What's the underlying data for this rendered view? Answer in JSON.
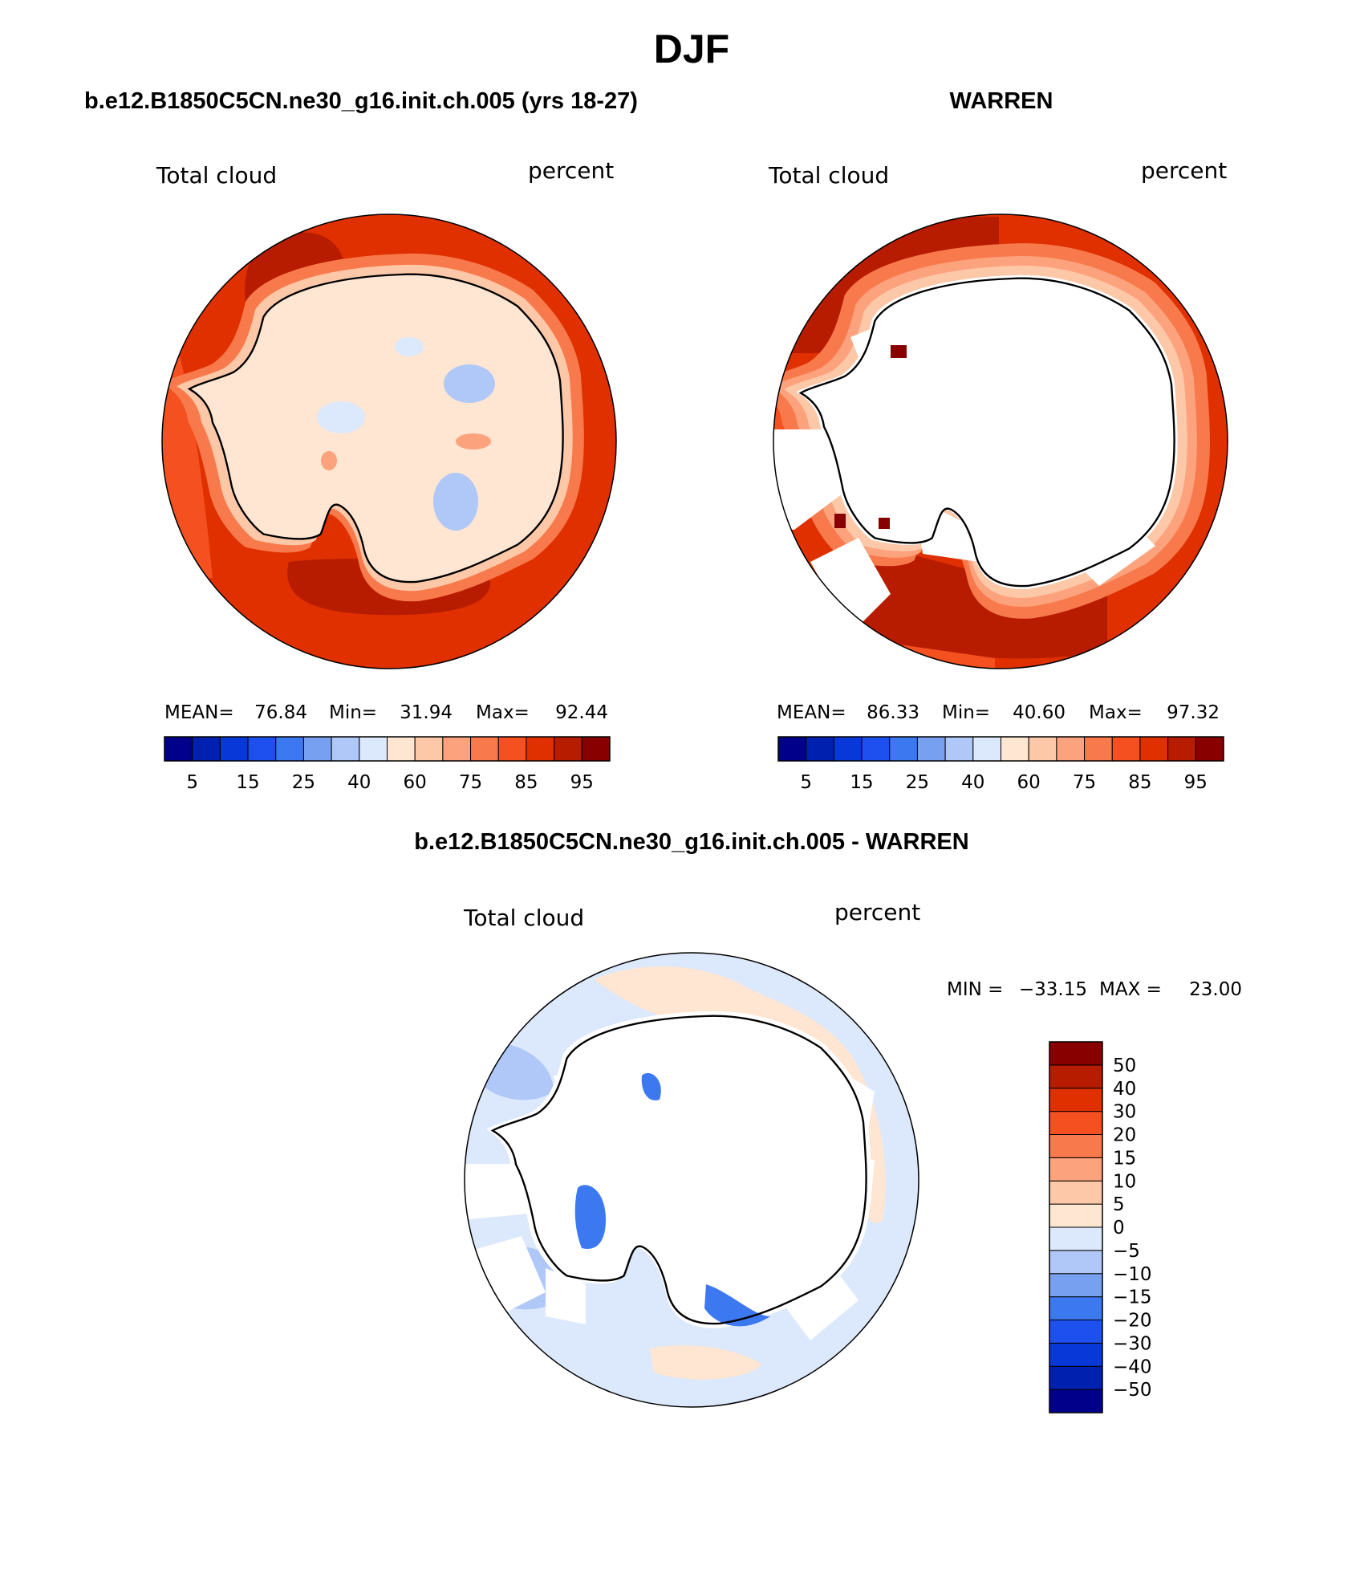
{
  "title": "DJF",
  "palette": {
    "sequential": [
      "#00008a",
      "#0020b0",
      "#0838d8",
      "#1e50f0",
      "#3c78f0",
      "#78a0f0",
      "#b0c8f8",
      "#dce8fc",
      "#fee6d2",
      "#fdc8a8",
      "#fca27c",
      "#f87a4c",
      "#f45020",
      "#e03000",
      "#b81c00",
      "#880000"
    ],
    "diverging": [
      "#00008a",
      "#0020b0",
      "#0838d8",
      "#1e50f0",
      "#3c78f0",
      "#78a0f0",
      "#b0c8f8",
      "#dce8fc",
      "#fee6d2",
      "#fdc8a8",
      "#fca27c",
      "#f87a4c",
      "#f45020",
      "#e03000",
      "#b81c00",
      "#880000"
    ],
    "ocean_model": "#e03000",
    "ocean_outer": "#f45020",
    "band_dark": "#b81c00",
    "coast_light": "#fee6d2",
    "ocean_diff": "#dce8fc",
    "missing": "#ffffff"
  },
  "panels": [
    {
      "id": "model",
      "title": "b.e12.B1850C5CN.ne30_g16.init.ch.005 (yrs 18-27)",
      "field_label": "Total cloud",
      "units_label": "percent",
      "stats": {
        "mean_label": "MEAN=",
        "mean": "76.84",
        "min_label": "Min=",
        "min": "31.94",
        "max_label": "Max=",
        "max": "92.44"
      },
      "colorbar_ticks": [
        "5",
        "15",
        "25",
        "40",
        "60",
        "75",
        "85",
        "95"
      ]
    },
    {
      "id": "obs",
      "title": "WARREN",
      "field_label": "Total cloud",
      "units_label": "percent",
      "stats": {
        "mean_label": "MEAN=",
        "mean": "86.33",
        "min_label": "Min=",
        "min": "40.60",
        "max_label": "Max=",
        "max": "97.32"
      },
      "colorbar_ticks": [
        "5",
        "15",
        "25",
        "40",
        "60",
        "75",
        "85",
        "95"
      ]
    },
    {
      "id": "diff",
      "title": "b.e12.B1850C5CN.ne30_g16.init.ch.005 - WARREN",
      "field_label": "Total cloud",
      "units_label": "percent",
      "minmax": {
        "min_label": "MIN =",
        "min": "−33.15",
        "max_label": "MAX =",
        "max": "23.00"
      },
      "colorbar_ticks": [
        "50",
        "40",
        "30",
        "20",
        "15",
        "10",
        "5",
        "0",
        "−5",
        "−10",
        "−15",
        "−20",
        "−30",
        "−40",
        "−50"
      ]
    }
  ]
}
